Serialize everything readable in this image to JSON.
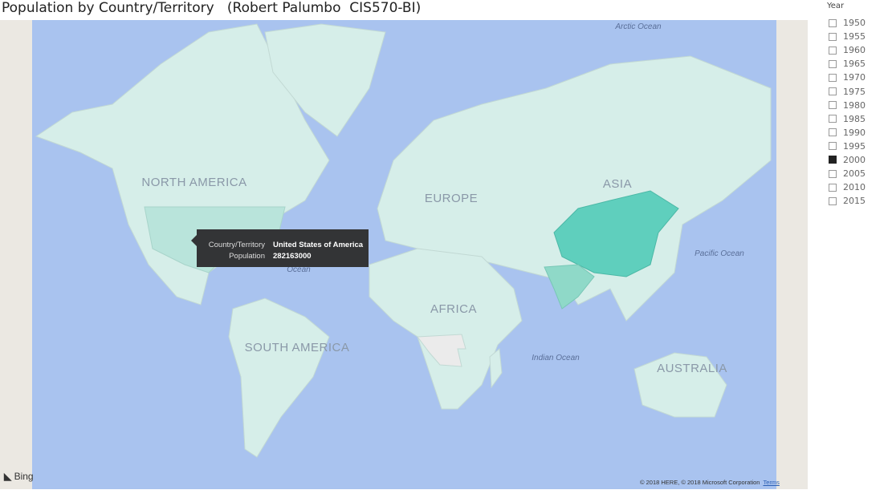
{
  "header": {
    "title": "Population by Country/Territory   (Robert Palumbo  CIS570-BI)"
  },
  "map": {
    "labels": [
      "Arctic Ocean",
      "NORTH AMERICA",
      "EUROPE",
      "ASIA",
      "Pacific Ocean",
      "Ocean",
      "AFRICA",
      "SOUTH AMERICA",
      "Indian Ocean",
      "AUSTRALIA"
    ],
    "tooltip": {
      "rows": [
        [
          "Country/Territory",
          "United States of America"
        ],
        [
          "Population",
          "282163000"
        ]
      ]
    },
    "attribution": {
      "brand": "Bing",
      "copyright": "© 2018 HERE, © 2018 Microsoft Corporation",
      "link": "Terms"
    }
  },
  "slicer": {
    "title": "Year",
    "items": [
      {
        "label": "1950",
        "selected": false
      },
      {
        "label": "1955",
        "selected": false
      },
      {
        "label": "1960",
        "selected": false
      },
      {
        "label": "1965",
        "selected": false
      },
      {
        "label": "1970",
        "selected": false
      },
      {
        "label": "1975",
        "selected": false
      },
      {
        "label": "1980",
        "selected": false
      },
      {
        "label": "1985",
        "selected": false
      },
      {
        "label": "1990",
        "selected": false
      },
      {
        "label": "1995",
        "selected": false
      },
      {
        "label": "2000",
        "selected": true
      },
      {
        "label": "2005",
        "selected": false
      },
      {
        "label": "2010",
        "selected": false
      },
      {
        "label": "2015",
        "selected": false
      }
    ]
  }
}
